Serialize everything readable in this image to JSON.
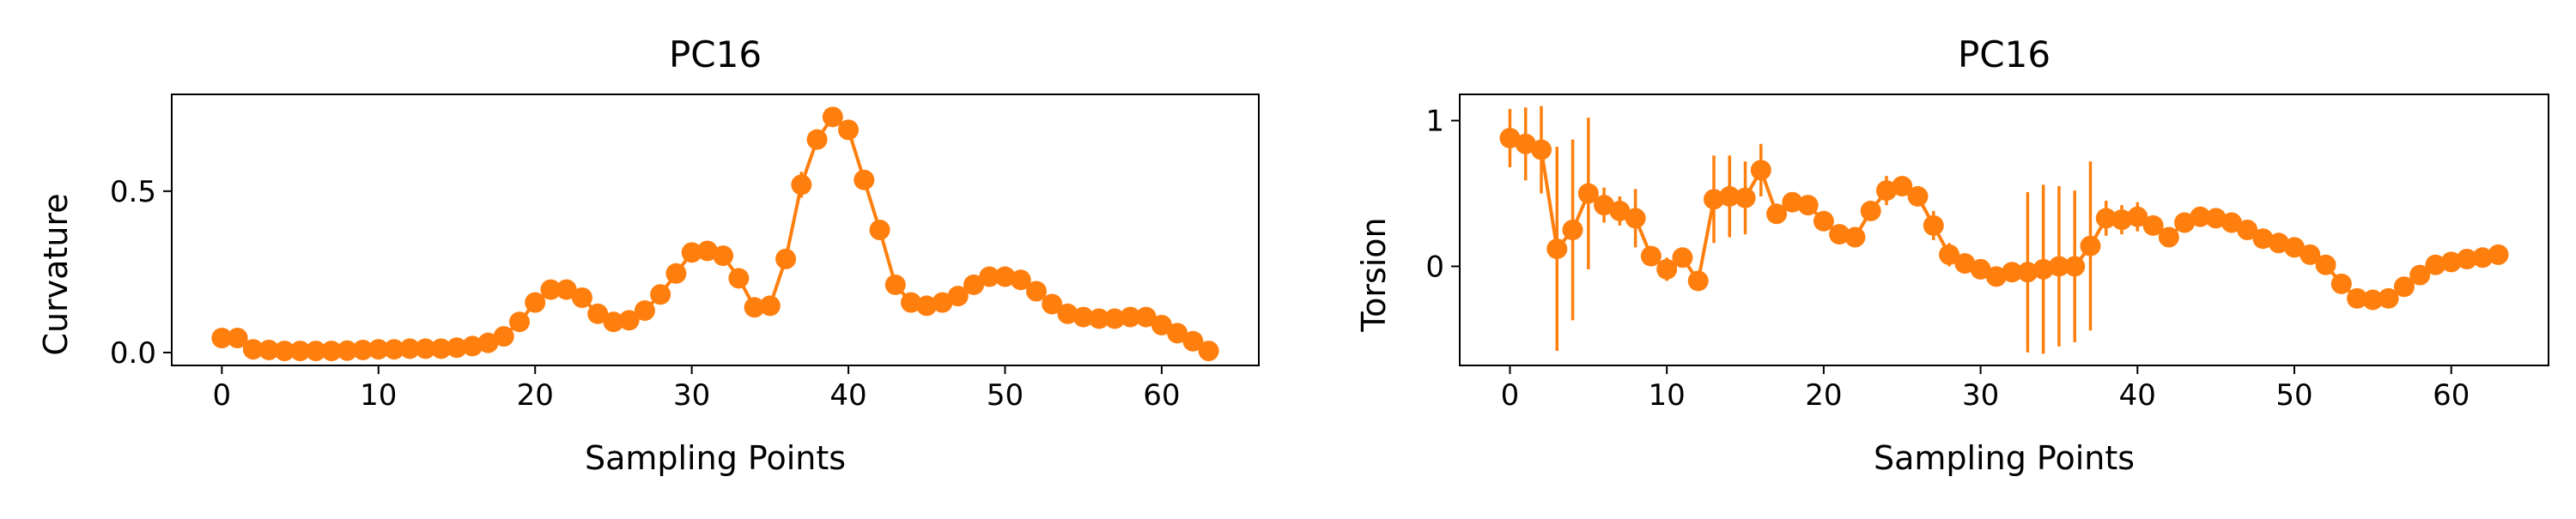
{
  "figure": {
    "accent_color": "#ff7f0e"
  },
  "chart_data": [
    {
      "type": "line",
      "title": "PC16",
      "xlabel": "Sampling Points",
      "ylabel": "Curvature",
      "xlim": [
        -3.2,
        66.2
      ],
      "ylim": [
        -0.04,
        0.8
      ],
      "xticks": [
        0,
        10,
        20,
        30,
        40,
        50,
        60
      ],
      "xtick_labels": [
        "0",
        "10",
        "20",
        "30",
        "40",
        "50",
        "60"
      ],
      "yticks": [
        0.0,
        0.5
      ],
      "ytick_labels": [
        "0.0",
        "0.5"
      ],
      "grid": false,
      "markers": "circle",
      "series": [
        {
          "color": "#ff7f0e",
          "x": [
            0,
            1,
            2,
            3,
            4,
            5,
            6,
            7,
            8,
            9,
            10,
            11,
            12,
            13,
            14,
            15,
            16,
            17,
            18,
            19,
            20,
            21,
            22,
            23,
            24,
            25,
            26,
            27,
            28,
            29,
            30,
            31,
            32,
            33,
            34,
            35,
            36,
            37,
            38,
            39,
            40,
            41,
            42,
            43,
            44,
            45,
            46,
            47,
            48,
            49,
            50,
            51,
            52,
            53,
            54,
            55,
            56,
            57,
            58,
            59,
            60,
            61,
            62,
            63
          ],
          "y": [
            0.045,
            0.045,
            0.01,
            0.008,
            0.005,
            0.005,
            0.005,
            0.005,
            0.006,
            0.008,
            0.01,
            0.01,
            0.012,
            0.012,
            0.012,
            0.015,
            0.02,
            0.03,
            0.05,
            0.095,
            0.155,
            0.195,
            0.195,
            0.17,
            0.12,
            0.095,
            0.1,
            0.13,
            0.18,
            0.245,
            0.31,
            0.315,
            0.3,
            0.23,
            0.14,
            0.145,
            0.29,
            0.52,
            0.66,
            0.73,
            0.69,
            0.535,
            0.38,
            0.21,
            0.155,
            0.145,
            0.155,
            0.175,
            0.21,
            0.235,
            0.235,
            0.225,
            0.19,
            0.15,
            0.12,
            0.11,
            0.105,
            0.105,
            0.11,
            0.11,
            0.085,
            0.06,
            0.035,
            0.005
          ],
          "yerr": [
            0.005,
            0.005,
            0.003,
            0.003,
            0.002,
            0.002,
            0.002,
            0.002,
            0.002,
            0.002,
            0.002,
            0.002,
            0.002,
            0.002,
            0.002,
            0.002,
            0.003,
            0.003,
            0.004,
            0.006,
            0.008,
            0.008,
            0.008,
            0.008,
            0.006,
            0.006,
            0.006,
            0.006,
            0.008,
            0.01,
            0.01,
            0.01,
            0.01,
            0.012,
            0.015,
            0.015,
            0.03,
            0.04,
            0.03,
            0.02,
            0.02,
            0.02,
            0.02,
            0.015,
            0.01,
            0.008,
            0.008,
            0.008,
            0.008,
            0.008,
            0.008,
            0.008,
            0.008,
            0.008,
            0.006,
            0.006,
            0.006,
            0.006,
            0.006,
            0.006,
            0.006,
            0.005,
            0.005,
            0.003
          ]
        }
      ]
    },
    {
      "type": "line",
      "title": "PC16",
      "xlabel": "Sampling Points",
      "ylabel": "Torsion",
      "xlim": [
        -3.2,
        66.2
      ],
      "ylim": [
        -0.68,
        1.18
      ],
      "xticks": [
        0,
        10,
        20,
        30,
        40,
        50,
        60
      ],
      "xtick_labels": [
        "0",
        "10",
        "20",
        "30",
        "40",
        "50",
        "60"
      ],
      "yticks": [
        0,
        1
      ],
      "ytick_labels": [
        "0",
        "1"
      ],
      "grid": false,
      "markers": "circle",
      "series": [
        {
          "color": "#ff7f0e",
          "x": [
            0,
            1,
            2,
            3,
            4,
            5,
            6,
            7,
            8,
            9,
            10,
            11,
            12,
            13,
            14,
            15,
            16,
            17,
            18,
            19,
            20,
            21,
            22,
            23,
            24,
            25,
            26,
            27,
            28,
            29,
            30,
            31,
            32,
            33,
            34,
            35,
            36,
            37,
            38,
            39,
            40,
            41,
            42,
            43,
            44,
            45,
            46,
            47,
            48,
            49,
            50,
            51,
            52,
            53,
            54,
            55,
            56,
            57,
            58,
            59,
            60,
            61,
            62,
            63
          ],
          "y": [
            0.88,
            0.84,
            0.8,
            0.12,
            0.25,
            0.5,
            0.42,
            0.38,
            0.33,
            0.07,
            -0.02,
            0.06,
            -0.1,
            0.46,
            0.48,
            0.47,
            0.66,
            0.36,
            0.44,
            0.42,
            0.31,
            0.22,
            0.2,
            0.38,
            0.52,
            0.55,
            0.48,
            0.28,
            0.08,
            0.02,
            -0.02,
            -0.07,
            -0.04,
            -0.04,
            -0.02,
            0.0,
            0.0,
            0.14,
            0.33,
            0.32,
            0.34,
            0.28,
            0.2,
            0.3,
            0.34,
            0.33,
            0.3,
            0.25,
            0.19,
            0.16,
            0.13,
            0.08,
            0.01,
            -0.12,
            -0.22,
            -0.23,
            -0.22,
            -0.14,
            -0.06,
            0.01,
            0.03,
            0.05,
            0.06,
            0.08
          ],
          "yerr": [
            0.2,
            0.25,
            0.3,
            0.7,
            0.62,
            0.52,
            0.12,
            0.1,
            0.2,
            0.07,
            0.08,
            0.05,
            0.06,
            0.3,
            0.28,
            0.25,
            0.18,
            0.06,
            0.05,
            0.05,
            0.05,
            0.05,
            0.05,
            0.06,
            0.1,
            0.06,
            0.05,
            0.1,
            0.08,
            0.06,
            0.05,
            0.05,
            0.05,
            0.55,
            0.58,
            0.55,
            0.52,
            0.58,
            0.12,
            0.1,
            0.1,
            0.06,
            0.06,
            0.05,
            0.04,
            0.04,
            0.04,
            0.04,
            0.04,
            0.04,
            0.04,
            0.04,
            0.04,
            0.06,
            0.05,
            0.04,
            0.04,
            0.05,
            0.04,
            0.04,
            0.04,
            0.04,
            0.04,
            0.04
          ]
        }
      ]
    }
  ]
}
